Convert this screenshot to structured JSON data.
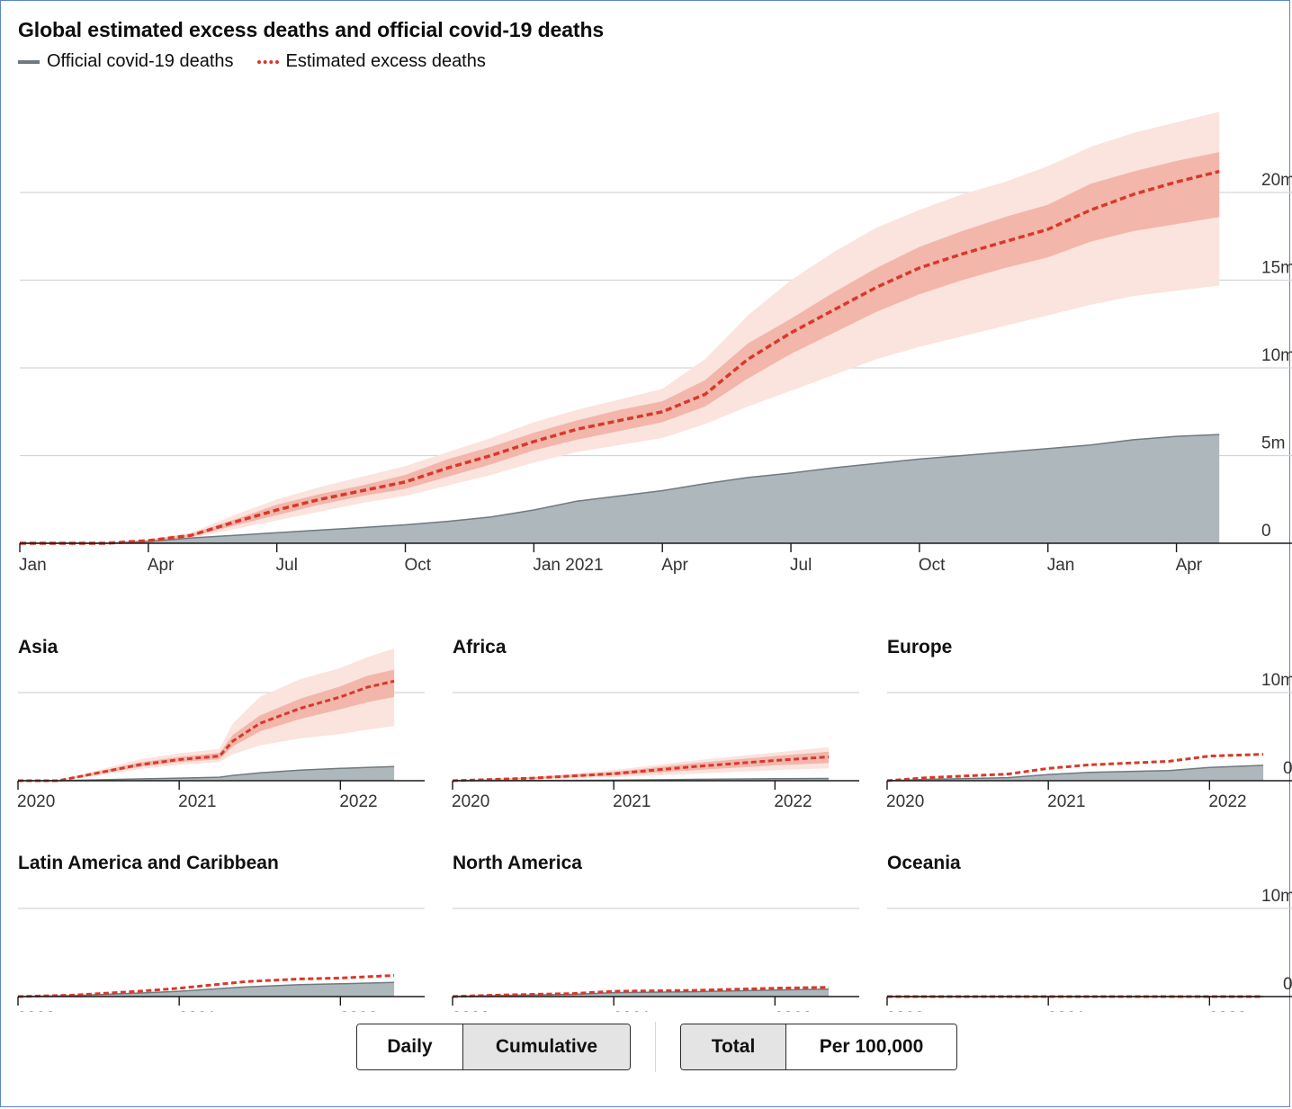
{
  "title": "Global estimated excess deaths and official covid-19 deaths",
  "legend": {
    "official": "Official covid-19 deaths",
    "excess": "Estimated excess deaths"
  },
  "colors": {
    "official_fill": "#aeb7bc",
    "official_line": "#6f7a80",
    "excess_line": "#d9382a",
    "band_inner": "#f2b6ab",
    "band_outer": "#fbe3de",
    "grid": "#d5d5d5"
  },
  "controls": {
    "mode": [
      "Daily",
      "Cumulative"
    ],
    "mode_selected": "Cumulative",
    "scale": [
      "Total",
      "Per 100,000"
    ],
    "scale_selected": "Total"
  },
  "chart_data": [
    {
      "type": "area",
      "title": "Global estimated excess deaths and official covid-19 deaths",
      "x_tick_labels": [
        "Jan",
        "Apr",
        "Jul",
        "Oct",
        "Jan 2021",
        "Apr",
        "Jul",
        "Oct",
        "Jan",
        "Apr"
      ],
      "y_tick_labels": [
        "0",
        "5m",
        "10m",
        "15m",
        "20m"
      ],
      "ylim": [
        0,
        25
      ],
      "y_unit": "millions",
      "grid": true,
      "x": [
        "2020-01-01",
        "2020-02-01",
        "2020-03-01",
        "2020-04-01",
        "2020-05-01",
        "2020-06-01",
        "2020-07-01",
        "2020-08-01",
        "2020-09-01",
        "2020-10-01",
        "2020-11-01",
        "2020-12-01",
        "2021-01-01",
        "2021-02-01",
        "2021-03-01",
        "2021-04-01",
        "2021-05-01",
        "2021-06-01",
        "2021-07-01",
        "2021-08-01",
        "2021-09-01",
        "2021-10-01",
        "2021-11-01",
        "2021-12-01",
        "2022-01-01",
        "2022-02-01",
        "2022-03-01",
        "2022-04-01",
        "2022-05-01"
      ],
      "series": [
        {
          "name": "Official covid-19 deaths",
          "values": [
            0,
            0,
            0,
            0.1,
            0.3,
            0.45,
            0.6,
            0.75,
            0.9,
            1.05,
            1.25,
            1.5,
            1.9,
            2.4,
            2.7,
            3.0,
            3.4,
            3.75,
            4.0,
            4.3,
            4.55,
            4.8,
            5.0,
            5.2,
            5.4,
            5.6,
            5.9,
            6.1,
            6.2
          ]
        },
        {
          "name": "Estimated excess deaths",
          "values": [
            0,
            0,
            0,
            0.15,
            0.45,
            1.2,
            1.9,
            2.5,
            3.0,
            3.5,
            4.3,
            5.0,
            5.8,
            6.5,
            7.0,
            7.5,
            8.5,
            10.5,
            12.0,
            13.3,
            14.6,
            15.7,
            16.5,
            17.2,
            17.9,
            19.0,
            19.9,
            20.6,
            21.2
          ]
        }
      ],
      "bands": [
        {
          "level": "outer",
          "low": [
            0,
            0,
            0,
            0.1,
            0.3,
            0.8,
            1.3,
            1.8,
            2.3,
            2.7,
            3.3,
            3.9,
            4.6,
            5.2,
            5.6,
            6.0,
            6.8,
            7.8,
            8.7,
            9.6,
            10.5,
            11.2,
            11.8,
            12.4,
            13.0,
            13.6,
            14.1,
            14.4,
            14.7
          ],
          "high": [
            0,
            0,
            0,
            0.2,
            0.6,
            1.6,
            2.5,
            3.2,
            3.8,
            4.4,
            5.2,
            6.0,
            6.9,
            7.6,
            8.2,
            8.8,
            10.5,
            13.0,
            15.0,
            16.6,
            18.0,
            19.0,
            19.9,
            20.6,
            21.5,
            22.6,
            23.4,
            24.0,
            24.6
          ]
        },
        {
          "level": "inner",
          "low": [
            0,
            0,
            0,
            0.12,
            0.38,
            1.0,
            1.6,
            2.2,
            2.7,
            3.1,
            3.8,
            4.5,
            5.3,
            5.9,
            6.4,
            6.9,
            7.8,
            9.4,
            10.8,
            12.0,
            13.2,
            14.2,
            15.0,
            15.7,
            16.3,
            17.2,
            17.8,
            18.2,
            18.6
          ],
          "high": [
            0,
            0,
            0,
            0.18,
            0.52,
            1.35,
            2.2,
            2.8,
            3.3,
            3.9,
            4.8,
            5.5,
            6.3,
            7.0,
            7.6,
            8.1,
            9.3,
            11.4,
            12.8,
            14.3,
            15.7,
            16.9,
            17.8,
            18.6,
            19.3,
            20.5,
            21.2,
            21.8,
            22.3
          ]
        }
      ]
    },
    {
      "type": "area",
      "title": "Asia",
      "x_tick_labels": [
        "2020",
        "2021",
        "2022"
      ],
      "y_tick_labels": [],
      "ylim": [
        0,
        12.5
      ],
      "y_unit": "millions",
      "x": [
        "2020-01-01",
        "2020-04-01",
        "2020-07-01",
        "2020-10-01",
        "2021-01-01",
        "2021-04-01",
        "2021-05-01",
        "2021-07-01",
        "2021-10-01",
        "2022-01-01",
        "2022-03-01",
        "2022-05-01"
      ],
      "series": [
        {
          "name": "Official covid-19 deaths",
          "values": [
            0,
            0,
            0.1,
            0.2,
            0.3,
            0.4,
            0.6,
            0.9,
            1.2,
            1.4,
            1.5,
            1.6
          ]
        },
        {
          "name": "Estimated excess deaths",
          "values": [
            0,
            0,
            0.9,
            1.8,
            2.4,
            2.8,
            4.5,
            6.5,
            8.2,
            9.5,
            10.6,
            11.3
          ]
        }
      ],
      "bands": [
        {
          "level": "outer",
          "low": [
            0,
            0,
            0.6,
            1.3,
            1.8,
            2.1,
            3.0,
            4.0,
            4.8,
            5.3,
            5.8,
            6.2
          ],
          "high": [
            0,
            0,
            1.2,
            2.4,
            3.1,
            3.6,
            6.5,
            9.5,
            11.5,
            12.8,
            14.0,
            15.0
          ]
        },
        {
          "level": "inner",
          "low": [
            0,
            0,
            0.75,
            1.55,
            2.1,
            2.45,
            3.9,
            5.6,
            7.0,
            8.1,
            8.9,
            9.5
          ],
          "high": [
            0,
            0,
            1.05,
            2.05,
            2.7,
            3.15,
            5.2,
            7.4,
            9.3,
            10.7,
            11.9,
            12.6
          ]
        }
      ]
    },
    {
      "type": "area",
      "title": "Africa",
      "x_tick_labels": [
        "2020",
        "2021",
        "2022"
      ],
      "y_tick_labels": [],
      "ylim": [
        0,
        12.5
      ],
      "y_unit": "millions",
      "x": [
        "2020-01-01",
        "2020-07-01",
        "2021-01-01",
        "2021-07-01",
        "2022-01-01",
        "2022-05-01"
      ],
      "series": [
        {
          "name": "Official covid-19 deaths",
          "values": [
            0,
            0.02,
            0.06,
            0.15,
            0.22,
            0.25
          ]
        },
        {
          "name": "Estimated excess deaths",
          "values": [
            0,
            0.3,
            0.8,
            1.6,
            2.3,
            2.7
          ]
        }
      ],
      "bands": [
        {
          "level": "outer",
          "low": [
            0,
            0.15,
            0.4,
            0.8,
            1.2,
            1.4
          ],
          "high": [
            0,
            0.45,
            1.2,
            2.3,
            3.2,
            3.8
          ]
        },
        {
          "level": "inner",
          "low": [
            0,
            0.22,
            0.6,
            1.2,
            1.75,
            2.0
          ],
          "high": [
            0,
            0.38,
            1.0,
            2.0,
            2.8,
            3.3
          ]
        }
      ]
    },
    {
      "type": "area",
      "title": "Europe",
      "x_tick_labels": [
        "2020",
        "2021",
        "2022"
      ],
      "y_tick_labels": [
        "0",
        "10m"
      ],
      "ylim": [
        0,
        12.5
      ],
      "y_unit": "millions",
      "x": [
        "2020-01-01",
        "2020-04-01",
        "2020-10-01",
        "2021-01-01",
        "2021-04-01",
        "2021-10-01",
        "2022-01-01",
        "2022-05-01"
      ],
      "series": [
        {
          "name": "Official covid-19 deaths",
          "values": [
            0,
            0.15,
            0.35,
            0.7,
            0.95,
            1.15,
            1.5,
            1.75
          ]
        },
        {
          "name": "Estimated excess deaths",
          "values": [
            0,
            0.35,
            0.75,
            1.4,
            1.8,
            2.2,
            2.8,
            3.0
          ]
        }
      ],
      "bands": []
    },
    {
      "type": "area",
      "title": "Latin America and Caribbean",
      "x_tick_labels": [
        "2020",
        "2021",
        "2022"
      ],
      "y_tick_labels": [],
      "ylim": [
        0,
        12.5
      ],
      "y_unit": "millions",
      "x": [
        "2020-01-01",
        "2020-05-01",
        "2020-10-01",
        "2021-01-01",
        "2021-06-01",
        "2021-10-01",
        "2022-01-01",
        "2022-05-01"
      ],
      "series": [
        {
          "name": "Official covid-19 deaths",
          "values": [
            0,
            0.1,
            0.4,
            0.6,
            1.1,
            1.35,
            1.45,
            1.6
          ]
        },
        {
          "name": "Estimated excess deaths",
          "values": [
            0,
            0.15,
            0.6,
            0.95,
            1.7,
            2.0,
            2.1,
            2.4
          ]
        }
      ],
      "bands": []
    },
    {
      "type": "area",
      "title": "North America",
      "x_tick_labels": [
        "2020",
        "2021",
        "2022"
      ],
      "y_tick_labels": [],
      "ylim": [
        0,
        12.5
      ],
      "y_unit": "millions",
      "x": [
        "2020-01-01",
        "2020-04-01",
        "2020-10-01",
        "2021-01-01",
        "2021-07-01",
        "2022-01-01",
        "2022-05-01"
      ],
      "series": [
        {
          "name": "Official covid-19 deaths",
          "values": [
            0,
            0.1,
            0.25,
            0.45,
            0.55,
            0.75,
            0.85
          ]
        },
        {
          "name": "Estimated excess deaths",
          "values": [
            0,
            0.15,
            0.35,
            0.6,
            0.7,
            0.95,
            1.05
          ]
        }
      ],
      "bands": []
    },
    {
      "type": "area",
      "title": "Oceania",
      "x_tick_labels": [
        "2020",
        "2021",
        "2022"
      ],
      "y_tick_labels": [
        "0",
        "10m"
      ],
      "ylim": [
        0,
        12.5
      ],
      "y_unit": "millions",
      "x": [
        "2020-01-01",
        "2021-01-01",
        "2022-05-01"
      ],
      "series": [
        {
          "name": "Official covid-19 deaths",
          "values": [
            0,
            0,
            0.01
          ]
        },
        {
          "name": "Estimated excess deaths",
          "values": [
            0,
            0,
            0
          ]
        }
      ],
      "bands": []
    }
  ]
}
